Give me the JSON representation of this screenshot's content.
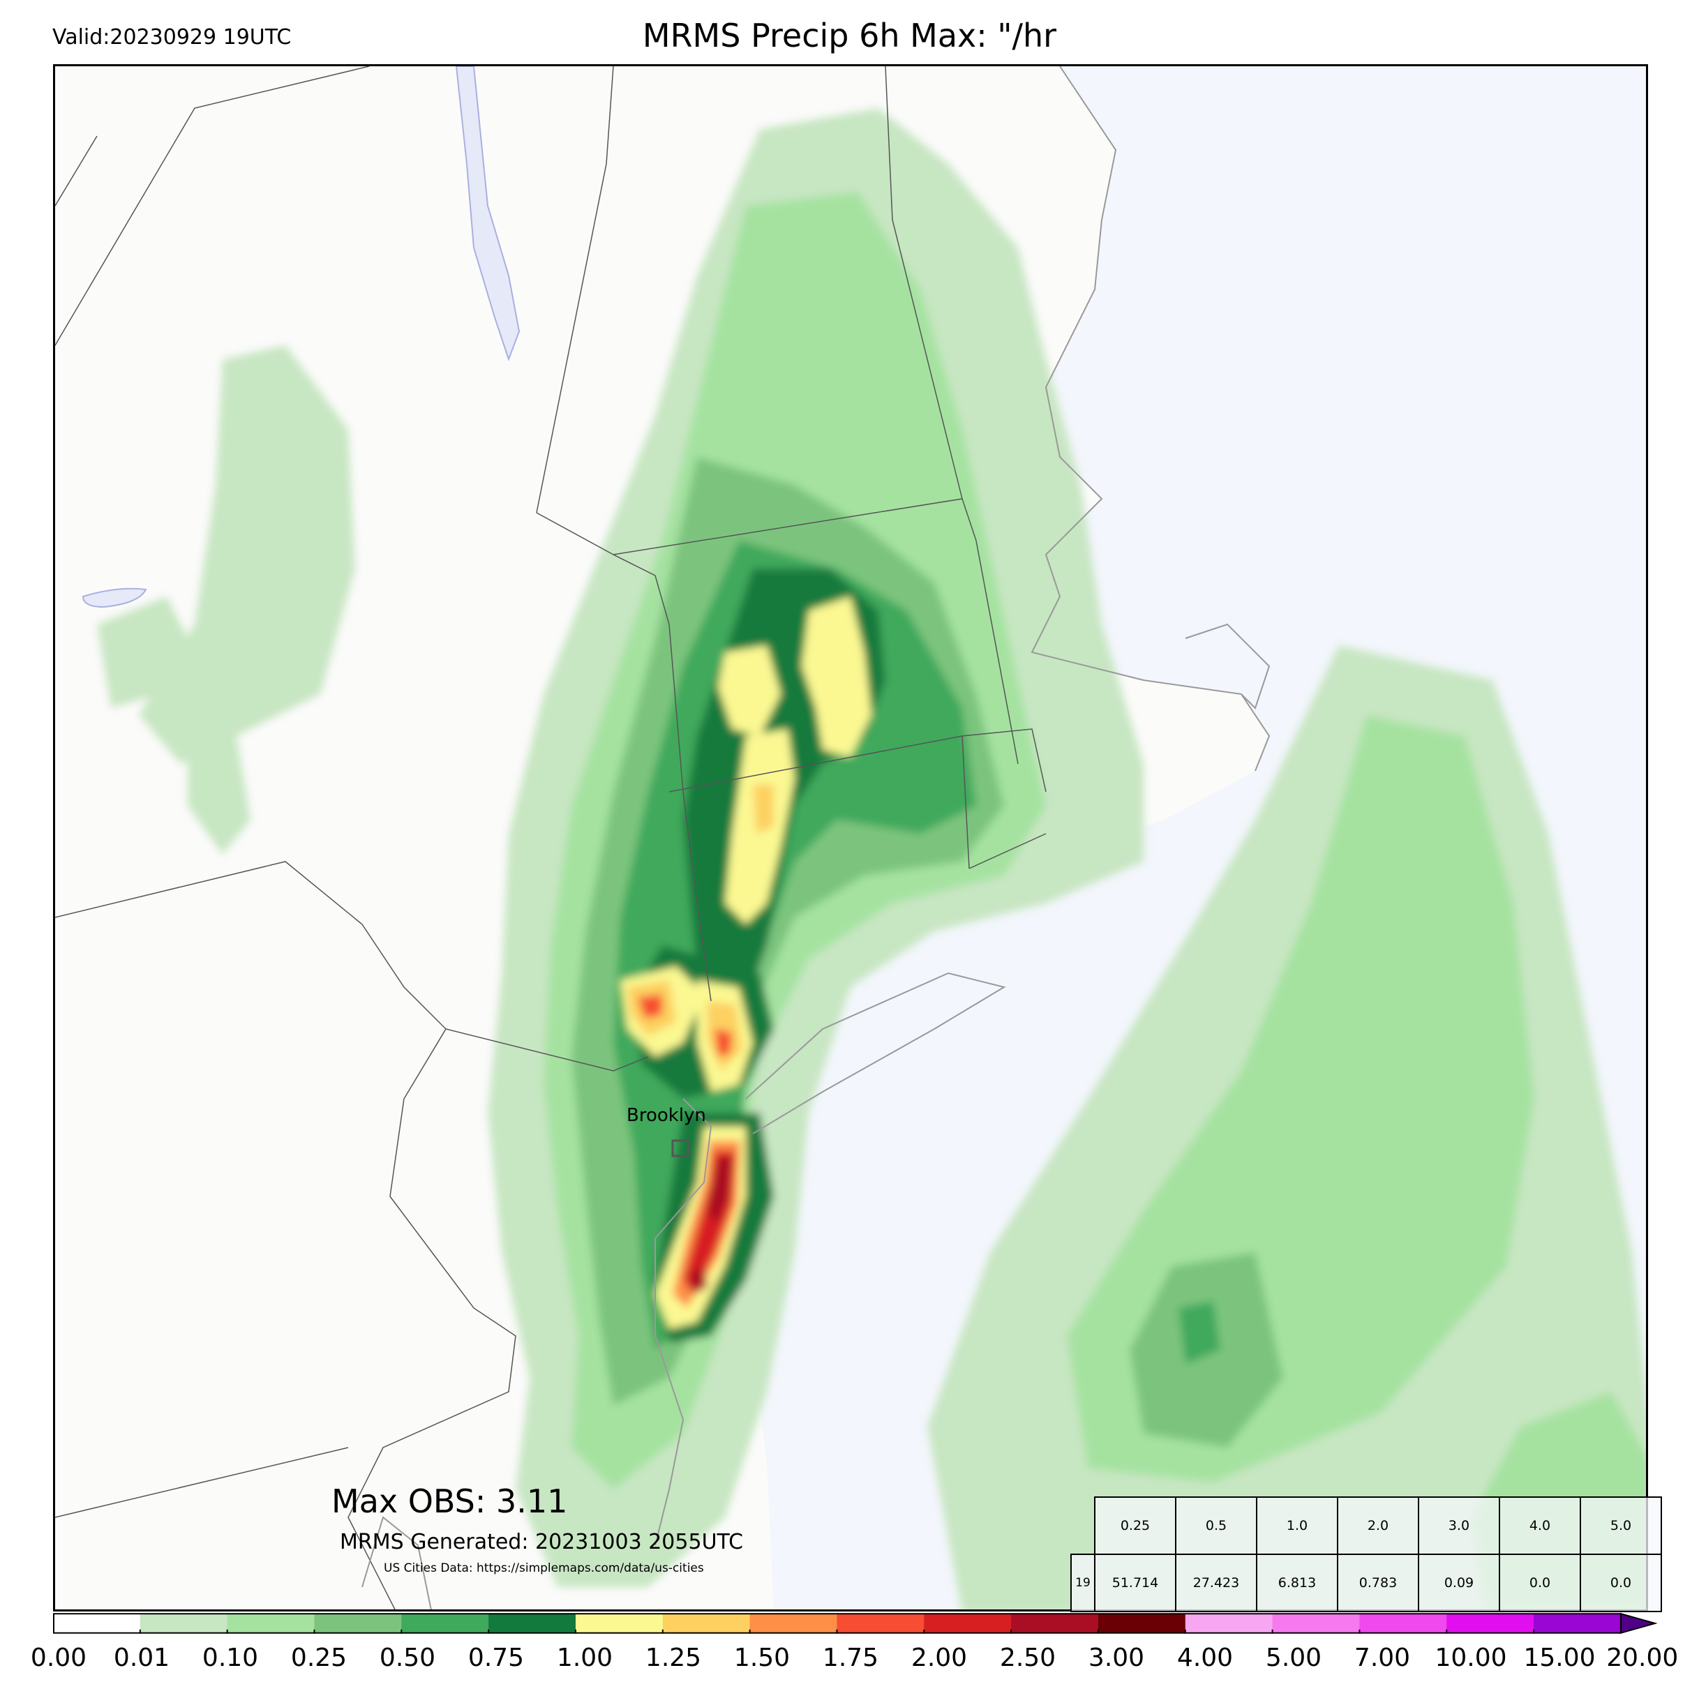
{
  "header": {
    "valid": "Valid:20230929 19UTC",
    "title": "MRMS Precip 6h Max: \"/hr"
  },
  "map": {
    "region": "US Northeast",
    "land_color": "#fbfbfa",
    "water_color": "#f3f6fc",
    "city_label": "Brooklyn",
    "max_obs": "Max OBS: 3.11",
    "generated": "MRMS Generated: 20231003 2055UTC",
    "credit": "US Cities Data: https://simplemaps.com/data/us-cities"
  },
  "table": {
    "thresholds": [
      "0.25",
      "0.5",
      "1.0",
      "2.0",
      "3.0",
      "4.0",
      "5.0"
    ],
    "row_label": "19",
    "values": [
      "51.714",
      "27.423",
      "6.813",
      "0.783",
      "0.09",
      "0.0",
      "0.0"
    ]
  },
  "colorbar": {
    "ticks": [
      "0.00",
      "0.01",
      "0.10",
      "0.25",
      "0.50",
      "0.75",
      "1.00",
      "1.25",
      "1.50",
      "1.75",
      "2.00",
      "2.50",
      "3.00",
      "4.00",
      "5.00",
      "7.00",
      "10.00",
      "15.00",
      "20.00"
    ],
    "colors": [
      "#ffffff",
      "#c7e6c2",
      "#a5e2a0",
      "#7cc47e",
      "#3fa95c",
      "#127a3c",
      "#fbf892",
      "#fdd060",
      "#fe8f46",
      "#f74d33",
      "#d71f21",
      "#aa0e24",
      "#6a0006",
      "#f7a7f1",
      "#f779f0",
      "#f049ee",
      "#e10ef0",
      "#9a06d3"
    ],
    "extend_color": "#500087"
  }
}
